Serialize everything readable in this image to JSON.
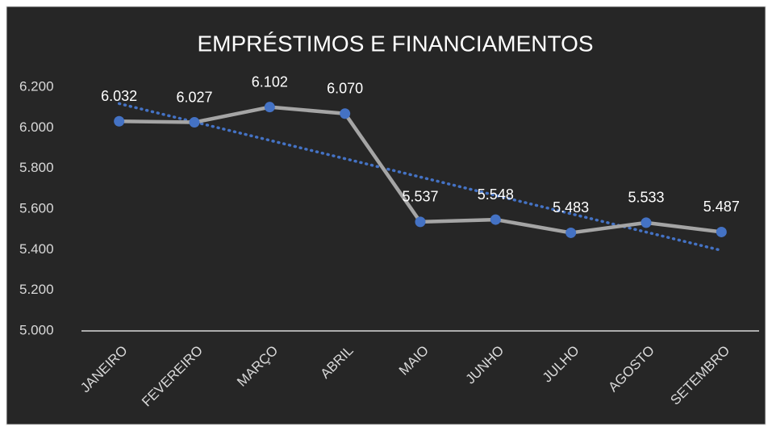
{
  "chart_data": {
    "type": "line",
    "title": "EMPRÉSTIMOS E FINANCIAMENTOS",
    "categories": [
      "JANEIRO",
      "FEVEREIRO",
      "MARÇO",
      "ABRIL",
      "MAIO",
      "JUNHO",
      "JULHO",
      "AGOSTO",
      "SETEMBRO"
    ],
    "series": [
      {
        "name": "EMPRÉSTIMOS E FINANCIAMENTOS",
        "color": "#a5a5a5",
        "marker_color": "#4472c4",
        "values": [
          6032,
          6027,
          6102,
          6070,
          5537,
          5548,
          5483,
          5533,
          5487
        ],
        "value_labels": [
          "6.032",
          "6.027",
          "6.102",
          "6.070",
          "5.537",
          "5.548",
          "5.483",
          "5.533",
          "5.487"
        ]
      }
    ],
    "trendline": {
      "type": "linear",
      "color": "#4472c4",
      "style": "dotted"
    },
    "ylim": [
      5000,
      6200
    ],
    "yticks": [
      {
        "value": 5000,
        "label": "5.000"
      },
      {
        "value": 5200,
        "label": "5.200"
      },
      {
        "value": 5400,
        "label": "5.400"
      },
      {
        "value": 5600,
        "label": "5.600"
      },
      {
        "value": 5800,
        "label": "5.800"
      },
      {
        "value": 6000,
        "label": "6.000"
      },
      {
        "value": 6200,
        "label": "6.200"
      }
    ],
    "grid": false
  }
}
